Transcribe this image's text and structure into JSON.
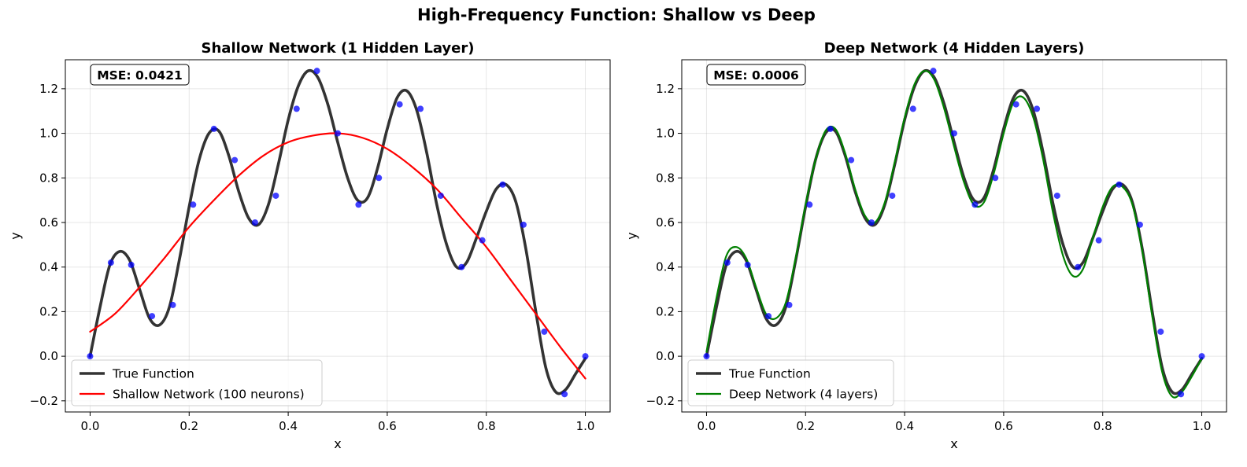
{
  "suptitle": "High-Frequency Function: Shallow vs Deep",
  "chart_data": [
    {
      "type": "line",
      "title": "Shallow Network (1 Hidden Layer)",
      "xlabel": "x",
      "ylabel": "y",
      "xlim": [
        -0.05,
        1.05
      ],
      "ylim": [
        -0.25,
        1.33
      ],
      "xticks": [
        0.0,
        0.2,
        0.4,
        0.6,
        0.8,
        1.0
      ],
      "yticks": [
        -0.2,
        0.0,
        0.2,
        0.4,
        0.6,
        0.8,
        1.0,
        1.2
      ],
      "grid": true,
      "legend_position": "lower-left",
      "annotation": "MSE: 0.0421",
      "series": [
        {
          "name": "True Function",
          "color": "#333333",
          "x": [
            0.0,
            0.02,
            0.04,
            0.06,
            0.08,
            0.1,
            0.12,
            0.14,
            0.16,
            0.18,
            0.2,
            0.22,
            0.24,
            0.26,
            0.28,
            0.3,
            0.32,
            0.34,
            0.36,
            0.38,
            0.4,
            0.42,
            0.44,
            0.46,
            0.48,
            0.5,
            0.52,
            0.54,
            0.56,
            0.58,
            0.6,
            0.62,
            0.64,
            0.66,
            0.68,
            0.7,
            0.72,
            0.74,
            0.76,
            0.78,
            0.8,
            0.82,
            0.84,
            0.86,
            0.88,
            0.9,
            0.92,
            0.94,
            0.96,
            0.98,
            1.0
          ],
          "y": [
            0.0,
            0.22,
            0.41,
            0.47,
            0.43,
            0.3,
            0.17,
            0.14,
            0.22,
            0.43,
            0.67,
            0.88,
            1.0,
            1.01,
            0.9,
            0.74,
            0.62,
            0.59,
            0.68,
            0.86,
            1.06,
            1.21,
            1.28,
            1.25,
            1.13,
            0.96,
            0.8,
            0.7,
            0.71,
            0.84,
            1.02,
            1.16,
            1.19,
            1.1,
            0.91,
            0.68,
            0.5,
            0.4,
            0.42,
            0.53,
            0.65,
            0.75,
            0.77,
            0.69,
            0.48,
            0.2,
            -0.05,
            -0.16,
            -0.15,
            -0.08,
            -0.01
          ]
        },
        {
          "name": "Shallow Network (100 neurons)",
          "color": "#ff0000",
          "x": [
            0.0,
            0.05,
            0.1,
            0.15,
            0.2,
            0.25,
            0.3,
            0.35,
            0.4,
            0.45,
            0.5,
            0.55,
            0.6,
            0.65,
            0.7,
            0.75,
            0.8,
            0.85,
            0.9,
            0.95,
            1.0
          ],
          "y": [
            0.11,
            0.19,
            0.31,
            0.44,
            0.58,
            0.7,
            0.81,
            0.9,
            0.96,
            0.99,
            1.0,
            0.98,
            0.93,
            0.85,
            0.75,
            0.62,
            0.49,
            0.34,
            0.19,
            0.04,
            -0.1
          ]
        },
        {
          "name": "",
          "type": "scatter",
          "color": "#0000ff",
          "x": [
            0.0,
            0.042,
            0.083,
            0.125,
            0.167,
            0.208,
            0.25,
            0.292,
            0.333,
            0.375,
            0.417,
            0.458,
            0.5,
            0.542,
            0.583,
            0.625,
            0.667,
            0.708,
            0.75,
            0.792,
            0.833,
            0.875,
            0.917,
            0.958,
            1.0
          ],
          "y": [
            0.0,
            0.42,
            0.41,
            0.18,
            0.23,
            0.68,
            1.02,
            0.88,
            0.6,
            0.72,
            1.11,
            1.28,
            1.0,
            0.68,
            0.8,
            1.13,
            1.11,
            0.72,
            0.4,
            0.52,
            0.77,
            0.59,
            0.11,
            -0.17,
            0.0
          ]
        }
      ]
    },
    {
      "type": "line",
      "title": "Deep Network (4 Hidden Layers)",
      "xlabel": "x",
      "ylabel": "y",
      "xlim": [
        -0.05,
        1.05
      ],
      "ylim": [
        -0.25,
        1.33
      ],
      "xticks": [
        0.0,
        0.2,
        0.4,
        0.6,
        0.8,
        1.0
      ],
      "yticks": [
        -0.2,
        0.0,
        0.2,
        0.4,
        0.6,
        0.8,
        1.0,
        1.2
      ],
      "grid": true,
      "legend_position": "lower-left",
      "annotation": "MSE: 0.0006",
      "series": [
        {
          "name": "True Function",
          "color": "#333333",
          "x": [
            0.0,
            0.02,
            0.04,
            0.06,
            0.08,
            0.1,
            0.12,
            0.14,
            0.16,
            0.18,
            0.2,
            0.22,
            0.24,
            0.26,
            0.28,
            0.3,
            0.32,
            0.34,
            0.36,
            0.38,
            0.4,
            0.42,
            0.44,
            0.46,
            0.48,
            0.5,
            0.52,
            0.54,
            0.56,
            0.58,
            0.6,
            0.62,
            0.64,
            0.66,
            0.68,
            0.7,
            0.72,
            0.74,
            0.76,
            0.78,
            0.8,
            0.82,
            0.84,
            0.86,
            0.88,
            0.9,
            0.92,
            0.94,
            0.96,
            0.98,
            1.0
          ],
          "y": [
            0.0,
            0.22,
            0.41,
            0.47,
            0.43,
            0.3,
            0.17,
            0.14,
            0.22,
            0.43,
            0.67,
            0.88,
            1.0,
            1.01,
            0.9,
            0.74,
            0.62,
            0.59,
            0.68,
            0.86,
            1.06,
            1.21,
            1.28,
            1.25,
            1.13,
            0.96,
            0.8,
            0.7,
            0.71,
            0.84,
            1.02,
            1.16,
            1.19,
            1.1,
            0.91,
            0.68,
            0.5,
            0.4,
            0.42,
            0.53,
            0.65,
            0.75,
            0.77,
            0.69,
            0.48,
            0.2,
            -0.05,
            -0.16,
            -0.15,
            -0.08,
            -0.01
          ]
        },
        {
          "name": "Deep Network (4 layers)",
          "color": "#008000",
          "x": [
            0.0,
            0.02,
            0.04,
            0.06,
            0.08,
            0.1,
            0.12,
            0.14,
            0.16,
            0.18,
            0.2,
            0.22,
            0.24,
            0.26,
            0.28,
            0.3,
            0.32,
            0.34,
            0.36,
            0.38,
            0.4,
            0.42,
            0.44,
            0.46,
            0.48,
            0.5,
            0.52,
            0.54,
            0.56,
            0.58,
            0.6,
            0.62,
            0.64,
            0.66,
            0.68,
            0.7,
            0.72,
            0.74,
            0.76,
            0.78,
            0.8,
            0.82,
            0.84,
            0.86,
            0.88,
            0.9,
            0.92,
            0.94,
            0.96,
            0.98,
            1.0
          ],
          "y": [
            0.02,
            0.26,
            0.45,
            0.49,
            0.44,
            0.31,
            0.19,
            0.17,
            0.24,
            0.44,
            0.68,
            0.88,
            1.01,
            1.02,
            0.91,
            0.75,
            0.63,
            0.6,
            0.69,
            0.87,
            1.07,
            1.22,
            1.28,
            1.24,
            1.11,
            0.94,
            0.78,
            0.68,
            0.69,
            0.82,
            1.0,
            1.14,
            1.16,
            1.07,
            0.88,
            0.64,
            0.45,
            0.36,
            0.39,
            0.53,
            0.67,
            0.76,
            0.76,
            0.68,
            0.47,
            0.18,
            -0.07,
            -0.18,
            -0.16,
            -0.09,
            -0.01
          ]
        },
        {
          "name": "",
          "type": "scatter",
          "color": "#0000ff",
          "x": [
            0.0,
            0.042,
            0.083,
            0.125,
            0.167,
            0.208,
            0.25,
            0.292,
            0.333,
            0.375,
            0.417,
            0.458,
            0.5,
            0.542,
            0.583,
            0.625,
            0.667,
            0.708,
            0.75,
            0.792,
            0.833,
            0.875,
            0.917,
            0.958,
            1.0
          ],
          "y": [
            0.0,
            0.42,
            0.41,
            0.18,
            0.23,
            0.68,
            1.02,
            0.88,
            0.6,
            0.72,
            1.11,
            1.28,
            1.0,
            0.68,
            0.8,
            1.13,
            1.11,
            0.72,
            0.4,
            0.52,
            0.77,
            0.59,
            0.11,
            -0.17,
            0.0
          ]
        }
      ]
    }
  ]
}
